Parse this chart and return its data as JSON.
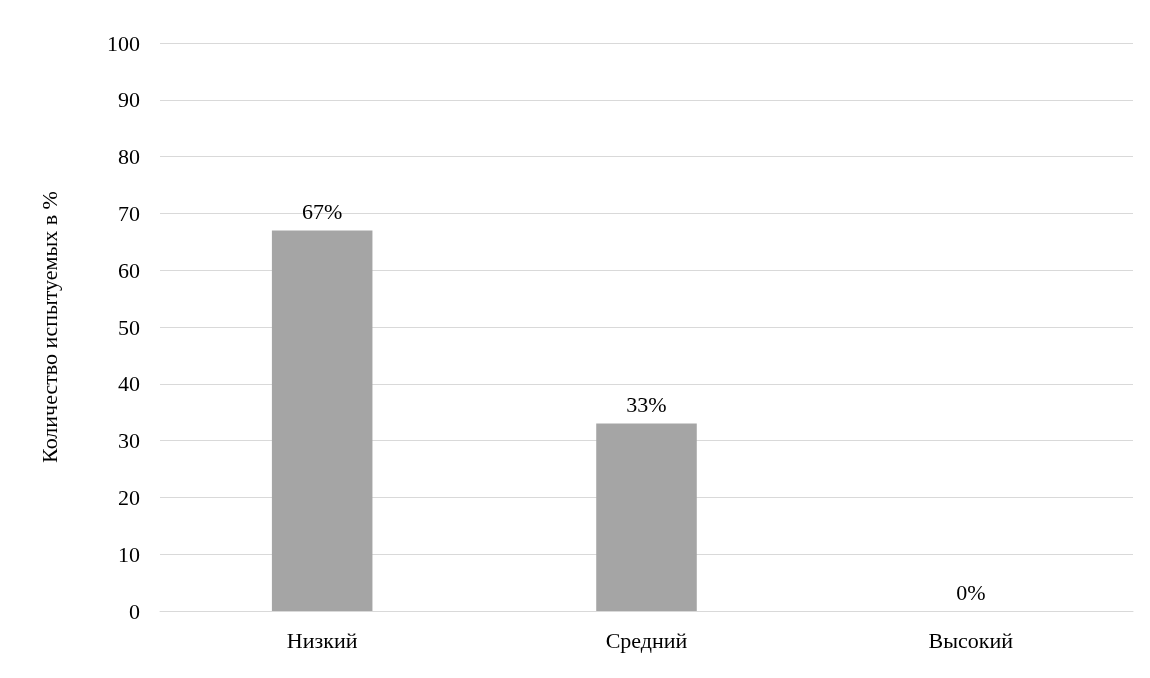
{
  "chart_data": {
    "type": "bar",
    "ylabel": "Количество испытуемых в %",
    "categories": [
      "Низкий",
      "Средний",
      "Высокий"
    ],
    "values": [
      67,
      33,
      0
    ],
    "value_labels": [
      "67%",
      "33%",
      "0%"
    ],
    "color": "#a5a5a5",
    "ylim": [
      0,
      100
    ],
    "yticks": [
      0,
      10,
      20,
      30,
      40,
      50,
      60,
      70,
      80,
      90,
      100
    ],
    "grid": true
  }
}
